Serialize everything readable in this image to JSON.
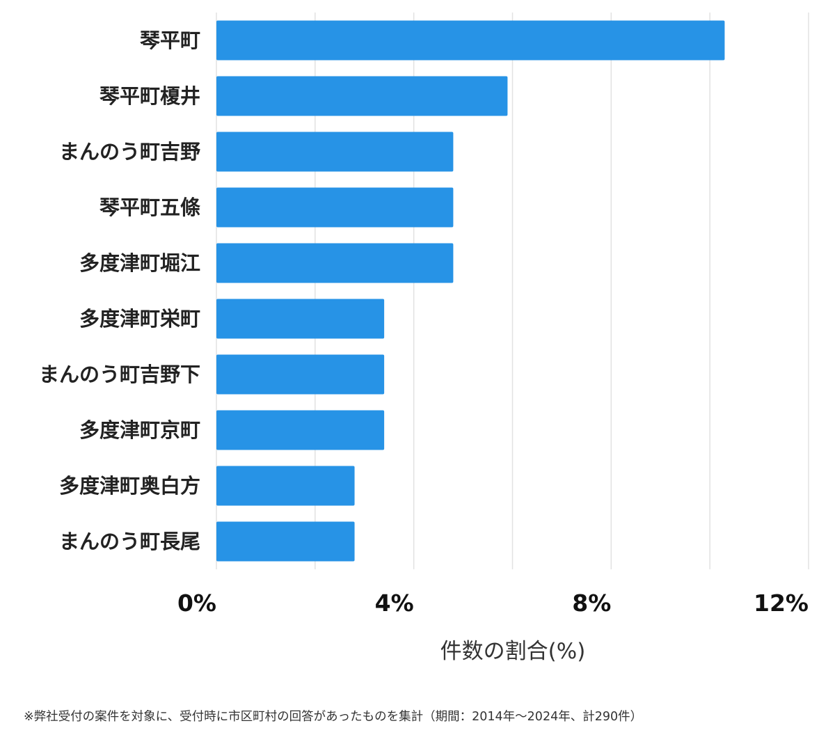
{
  "chart_data": {
    "type": "bar",
    "orientation": "horizontal",
    "categories": [
      "琴平町",
      "琴平町榎井",
      "まんのう町吉野",
      "琴平町五條",
      "多度津町堀江",
      "多度津町栄町",
      "まんのう町吉野下",
      "多度津町京町",
      "多度津町奥白方",
      "まんのう町長尾"
    ],
    "values": [
      10.3,
      5.9,
      4.8,
      4.8,
      4.8,
      3.4,
      3.4,
      3.4,
      2.8,
      2.8
    ],
    "xlim": [
      0,
      12
    ],
    "xticks": [
      0,
      4,
      8,
      12
    ],
    "xtick_labels": [
      "0%",
      "4%",
      "8%",
      "12%"
    ],
    "gridlines": [
      0,
      2,
      4,
      6,
      8,
      10,
      12
    ],
    "xlabel": "件数の割合(%)",
    "ylabel": "",
    "title": "",
    "bar_color": "#2793e6"
  },
  "footnote": "※弊社受付の案件を対象に、受付時に市区町村の回答があったものを集計（期間：2014年～2024年、計290件）"
}
